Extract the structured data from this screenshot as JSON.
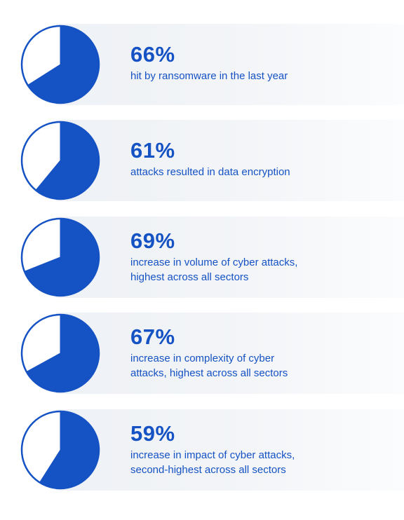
{
  "colors": {
    "accent": "#1552c4",
    "band": "#eef1f5",
    "pie_empty": "#ffffff"
  },
  "chart_data": {
    "type": "pie",
    "series": [
      {
        "value": 66,
        "label": "66%",
        "description": "hit by ransomware in the last year"
      },
      {
        "value": 61,
        "label": "61%",
        "description": "attacks resulted in data encryption"
      },
      {
        "value": 69,
        "label": "69%",
        "description": "increase in volume of cyber attacks,\nhighest across all sectors"
      },
      {
        "value": 67,
        "label": "67%",
        "description": "increase in complexity of cyber\nattacks, highest across all sectors"
      },
      {
        "value": 59,
        "label": "59%",
        "description": "increase in impact of cyber attacks,\nsecond-highest across all sectors"
      }
    ]
  }
}
